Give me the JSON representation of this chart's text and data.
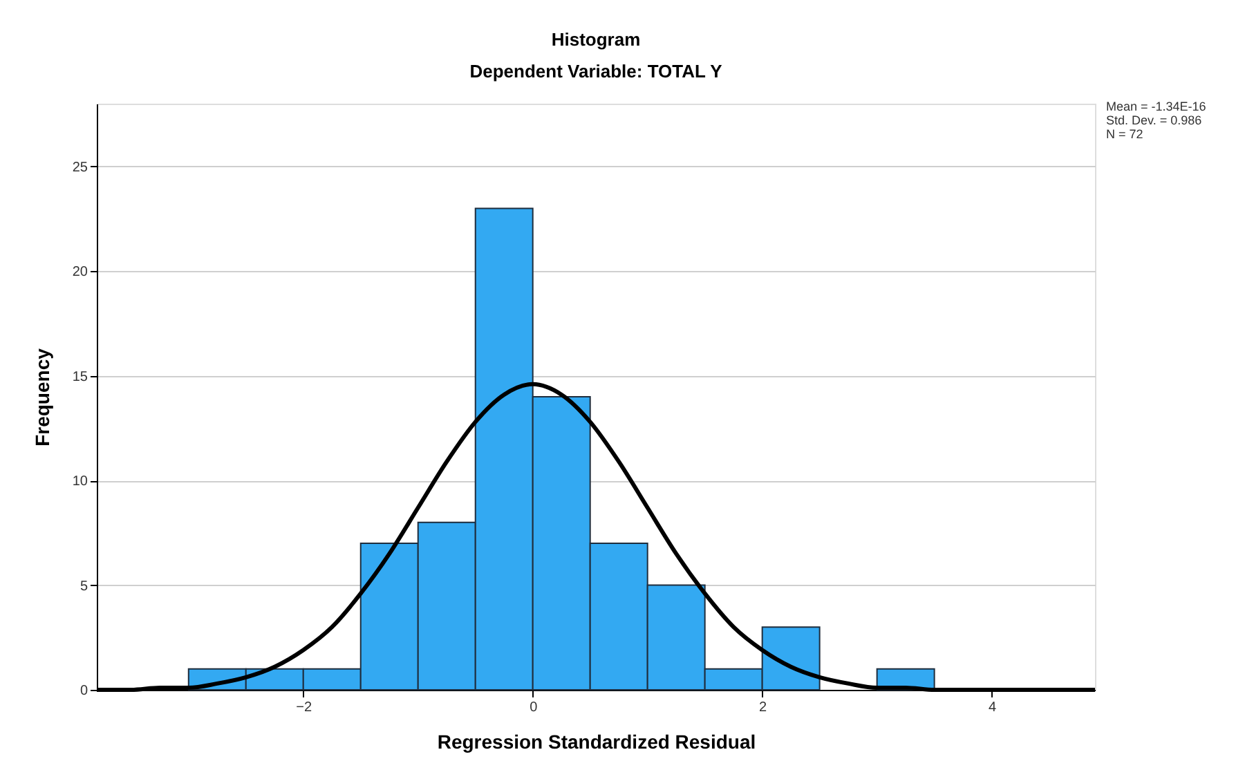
{
  "chart_data": {
    "type": "histogram",
    "title": "Histogram",
    "subtitle": "Dependent Variable: TOTAL Y",
    "xlabel": "Regression Standardized Residual",
    "ylabel": "Frequency",
    "bins": [
      -3,
      -2.5,
      -2,
      -1.5,
      -1,
      -0.5,
      0,
      0.5,
      1,
      1.5,
      2,
      2.5,
      3,
      3.5
    ],
    "values": [
      1,
      1,
      1,
      7,
      8,
      23,
      14,
      7,
      5,
      1,
      3,
      0,
      1
    ],
    "color": "#33a9f2",
    "series": [
      {
        "type": "line",
        "color": "#000000",
        "x": [
          -3.8,
          -3.5,
          -3.25,
          -3,
          -2.75,
          -2.5,
          -2.25,
          -2,
          -1.75,
          -1.5,
          -1.25,
          -1,
          -0.75,
          -0.5,
          -0.25,
          0,
          0.25,
          0.5,
          0.75,
          1,
          1.25,
          1.5,
          1.75,
          2,
          2.25,
          2.5,
          2.75,
          3,
          3.25,
          3.5,
          4,
          4.9
        ],
        "values": [
          0,
          0,
          0.1,
          0.1,
          0.3,
          0.6,
          1.1,
          1.9,
          3.0,
          4.6,
          6.5,
          8.7,
          10.9,
          12.8,
          14.1,
          14.6,
          14.1,
          12.8,
          10.9,
          8.7,
          6.5,
          4.6,
          3.0,
          1.9,
          1.1,
          0.6,
          0.3,
          0.1,
          0.1,
          0,
          0,
          0
        ]
      }
    ],
    "xlim": [
      -3.8,
      4.9
    ],
    "xticks": [
      -2,
      0,
      2,
      4
    ],
    "ylim": [
      0,
      28
    ],
    "yticks": [
      0,
      5,
      10,
      15,
      20,
      25
    ],
    "grid": "y",
    "line_style": "solid",
    "marker": "none",
    "annotations": [
      "Mean = -1.34E-16",
      "Std. Dev. = 0.986",
      "N = 72"
    ]
  }
}
